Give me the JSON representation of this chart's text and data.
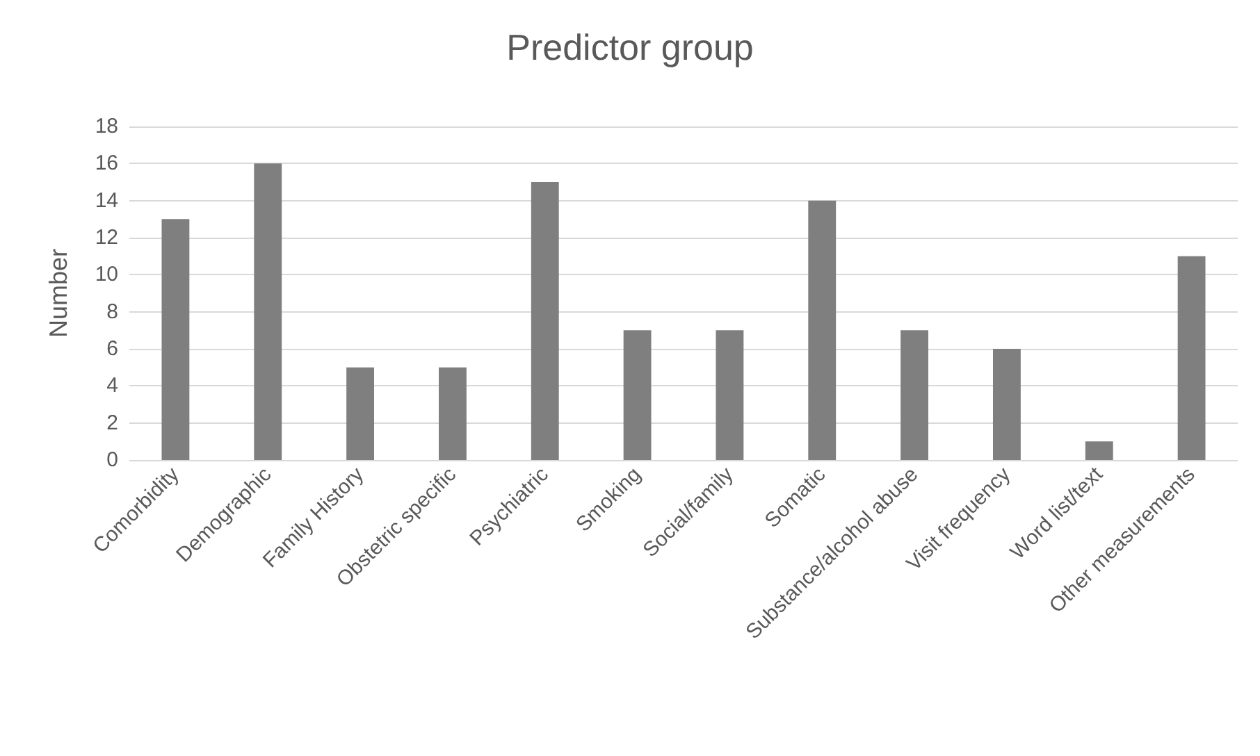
{
  "chart_data": {
    "type": "bar",
    "title": "Predictor group",
    "ylabel": "Number",
    "categories": [
      "Comorbidity",
      "Demographic",
      "Family History",
      "Obstetric specific",
      "Psychiatric",
      "Smoking",
      "Social/family",
      "Somatic",
      "Substance/alcohol abuse",
      "Visit frequency",
      "Word list/text",
      "Other measurements"
    ],
    "values": [
      13,
      16,
      5,
      5,
      15,
      7,
      7,
      14,
      7,
      6,
      1,
      11
    ],
    "color": "#7f7f7f",
    "ylim": [
      0,
      18
    ],
    "yticks": [
      0,
      2,
      4,
      6,
      8,
      10,
      12,
      14,
      16,
      18
    ],
    "grid": "y"
  }
}
